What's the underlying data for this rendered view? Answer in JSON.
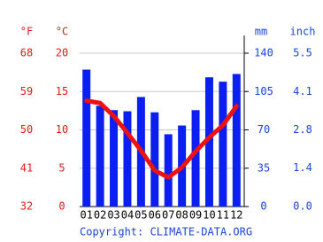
{
  "chart_data": {
    "type": "combo",
    "categories": [
      "01",
      "02",
      "03",
      "04",
      "05",
      "06",
      "07",
      "08",
      "09",
      "10",
      "11",
      "12"
    ],
    "series": [
      {
        "type": "bar",
        "axis": "y2",
        "color": "#0a1ff0",
        "values": [
          125,
          92,
          88,
          87,
          100,
          86,
          66,
          74,
          88,
          118,
          114,
          121
        ]
      },
      {
        "type": "line",
        "axis": "y",
        "color": "#ee1111",
        "values": [
          13.8,
          13.5,
          11.8,
          9.6,
          7.3,
          4.7,
          3.8,
          5.1,
          7.2,
          9.0,
          10.6,
          13.1
        ]
      }
    ],
    "ylabel": "°C",
    "ylim": [
      0,
      20
    ],
    "yticks": [
      0,
      5,
      10,
      15,
      20
    ],
    "yflabel": "°F",
    "yflim": [
      32,
      68
    ],
    "yfticks": [
      32,
      41,
      50,
      59,
      68
    ],
    "y2label": "mm",
    "y2lim": [
      0,
      140
    ],
    "y2ticks": [
      0,
      35,
      70,
      105,
      140
    ],
    "y3label": "inch",
    "y3lim": [
      0,
      5.51
    ],
    "y3ticks": [
      {
        "value": 0,
        "label": "0.0"
      },
      {
        "value": 1.38,
        "label": "1.4"
      },
      {
        "value": 2.76,
        "label": "2.8"
      },
      {
        "value": 4.13,
        "label": "4.1"
      },
      {
        "value": 5.51,
        "label": "5.5"
      }
    ],
    "grid": true,
    "copyright": "Copyright: CLIMATE-DATA.ORG"
  }
}
